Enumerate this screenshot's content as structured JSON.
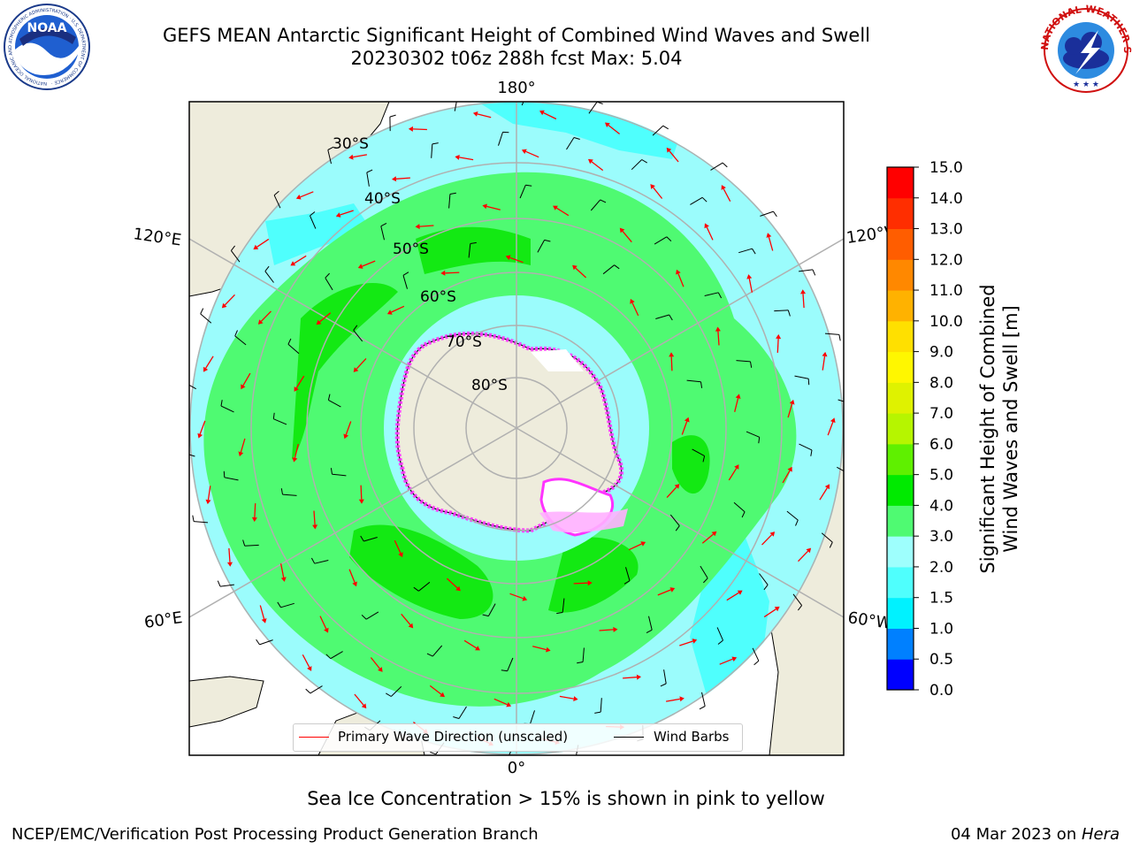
{
  "header": {
    "title_line1": "GEFS MEAN Antarctic Significant Height of Combined Wind Waves and Swell",
    "title_line2": "20230302 t06z 288h fcst   Max: 5.04"
  },
  "logos": {
    "noaa": {
      "text": "NOAA",
      "ring_text": "NATIONAL OCEANIC AND ATMOSPHERIC ADMINISTRATION · U.S. DEPARTMENT OF COMMERCE ·"
    },
    "nws": {
      "ring_text": "NATIONAL WEATHER SERVICE"
    }
  },
  "map": {
    "projection": "south-polar-stereographic",
    "longitude_labels": {
      "top": "180°",
      "bottom": "0°",
      "left_upper": "120°E",
      "left_lower": "60°E",
      "right_upper": "120°W",
      "right_lower": "60°W"
    },
    "latitude_labels": [
      "30°S",
      "40°S",
      "50°S",
      "60°S",
      "70°S",
      "80°S"
    ],
    "colors": {
      "ocean_low": "#9bfcfc",
      "ocean_mid": "#4fff78",
      "ocean_high": "#13e913",
      "land": "#eeecdc",
      "ice_edge": "#ff33ff",
      "grid": "#b0b0b0",
      "arrow": "#ff0000",
      "barb": "#000000"
    },
    "legend": [
      {
        "label": "Primary Wave Direction (unscaled)",
        "color": "#ff0000"
      },
      {
        "label": "Wind Barbs",
        "color": "#000000"
      }
    ]
  },
  "colorbar": {
    "label_line1": "Significant Height of Combined",
    "label_line2": "Wind Waves and Swell [m]",
    "ticks": [
      "0.0",
      "0.5",
      "1.0",
      "1.5",
      "2.0",
      "3.0",
      "4.0",
      "5.0",
      "6.0",
      "7.0",
      "8.0",
      "9.0",
      "10.0",
      "11.0",
      "12.0",
      "13.0",
      "14.0",
      "15.0"
    ],
    "colors": [
      "#0000ff",
      "#0080ff",
      "#00f2ff",
      "#4ffffd",
      "#9efffd",
      "#4ffa72",
      "#00ea00",
      "#5ff000",
      "#b6f500",
      "#dff200",
      "#fff700",
      "#ffe000",
      "#ffb200",
      "#ff8800",
      "#ff5d00",
      "#ff2e00",
      "#ff0000"
    ]
  },
  "annotation": "Sea Ice Concentration > 15% is shown in pink to yellow",
  "footer": {
    "left": "NCEP/EMC/Verification Post Processing Product Generation Branch",
    "date": "04 Mar 2023 on ",
    "host": "Hera"
  }
}
